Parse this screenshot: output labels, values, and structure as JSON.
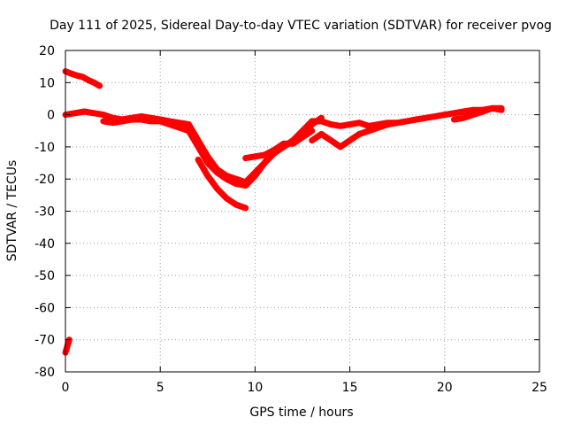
{
  "chart_data": {
    "type": "line",
    "title": "Day 111 of 2025, Sidereal Day-to-day VTEC variation (SDTVAR) for receiver pvog",
    "xlabel": "GPS time / hours",
    "ylabel": "SDTVAR / TECUs",
    "xlim": [
      0,
      25
    ],
    "ylim": [
      -80,
      20
    ],
    "xticks": [
      0,
      5,
      10,
      15,
      20,
      25
    ],
    "yticks": [
      20,
      10,
      0,
      -10,
      -20,
      -30,
      -40,
      -50,
      -60,
      -70,
      -80
    ],
    "xtick_labels": [
      "0",
      "5",
      "10",
      "15",
      "20",
      "25"
    ],
    "ytick_labels": [
      "20",
      "10",
      "0",
      "-10",
      "-20",
      "-30",
      "-40",
      "-50",
      "-60",
      "-70",
      "-80"
    ],
    "grid": true,
    "color": "#ff0000",
    "series": [
      {
        "name": "seg-early-high",
        "x": [
          0.0,
          0.3,
          0.6,
          0.9,
          1.2,
          1.5,
          1.8
        ],
        "y": [
          13.5,
          12.8,
          12.2,
          11.8,
          10.8,
          10.0,
          9.0
        ]
      },
      {
        "name": "seg-early-low",
        "x": [
          0.0,
          0.1,
          0.2
        ],
        "y": [
          -74,
          -72,
          -70
        ]
      },
      {
        "name": "seg-main-a",
        "x": [
          0.0,
          0.5,
          1.0,
          1.5,
          2.0,
          2.5,
          3.0,
          3.5,
          4.0,
          4.5,
          5.0,
          5.5,
          6.0,
          6.5,
          7.0,
          7.5,
          8.0,
          8.5,
          9.0,
          9.5,
          10.0,
          10.5,
          11.0,
          11.5,
          12.0,
          12.5,
          13.0,
          13.5,
          14.0,
          14.5,
          15.0,
          15.5,
          16.0,
          16.5,
          17.0,
          17.5,
          18.0,
          18.5,
          19.0,
          19.5,
          20.0,
          20.5,
          21.0,
          21.5,
          22.0,
          22.5,
          23.0
        ],
        "y": [
          0,
          0.5,
          1,
          0.5,
          0,
          -1,
          -1.5,
          -1,
          -0.5,
          -1,
          -1.5,
          -2,
          -2.5,
          -3,
          -8,
          -13,
          -17,
          -19,
          -20,
          -21,
          -18,
          -15,
          -12,
          -10,
          -8,
          -5,
          -2,
          -2,
          -3,
          -3.5,
          -3,
          -2.5,
          -3.5,
          -3,
          -2.5,
          -2.5,
          -2,
          -1.5,
          -1,
          -0.5,
          0,
          0.5,
          1,
          1.5,
          1.5,
          2,
          2
        ]
      },
      {
        "name": "seg-main-b",
        "x": [
          2.0,
          2.5,
          3.0,
          3.5,
          4.0,
          4.5,
          5.0,
          5.5,
          6.0,
          6.5,
          7.0,
          7.5,
          8.0,
          8.5,
          9.0,
          9.5,
          10.0,
          10.5,
          11.0,
          11.5,
          12.0,
          12.5,
          13.0
        ],
        "y": [
          -2,
          -2.5,
          -2,
          -1.5,
          -1.5,
          -2,
          -2,
          -3,
          -4,
          -5,
          -10,
          -15,
          -18,
          -20,
          -21.5,
          -22,
          -19,
          -15,
          -11,
          -9,
          -9,
          -7,
          -5
        ]
      },
      {
        "name": "seg-trough",
        "x": [
          7.0,
          7.5,
          8.0,
          8.5,
          9.0,
          9.5
        ],
        "y": [
          -14,
          -19,
          -23,
          -26,
          -28,
          -29
        ]
      },
      {
        "name": "seg-recovery",
        "x": [
          9.5,
          10.0,
          10.5,
          11.0,
          11.5,
          12.0,
          12.5,
          13.0,
          13.5
        ],
        "y": [
          -13.5,
          -13,
          -12.5,
          -11,
          -10,
          -8,
          -6,
          -3,
          -1
        ]
      },
      {
        "name": "seg-bump",
        "x": [
          13.0,
          13.5,
          14.0,
          14.5,
          15.0,
          15.5,
          16.0,
          16.5,
          17.0,
          17.5
        ],
        "y": [
          -8,
          -6,
          -8,
          -10,
          -8,
          -6,
          -5,
          -4,
          -3,
          -2.5
        ]
      },
      {
        "name": "seg-tail",
        "x": [
          20.5,
          21.0,
          21.5,
          22.0,
          22.5,
          23.0
        ],
        "y": [
          -1.5,
          -1,
          0,
          1,
          2,
          1.5
        ]
      }
    ]
  }
}
